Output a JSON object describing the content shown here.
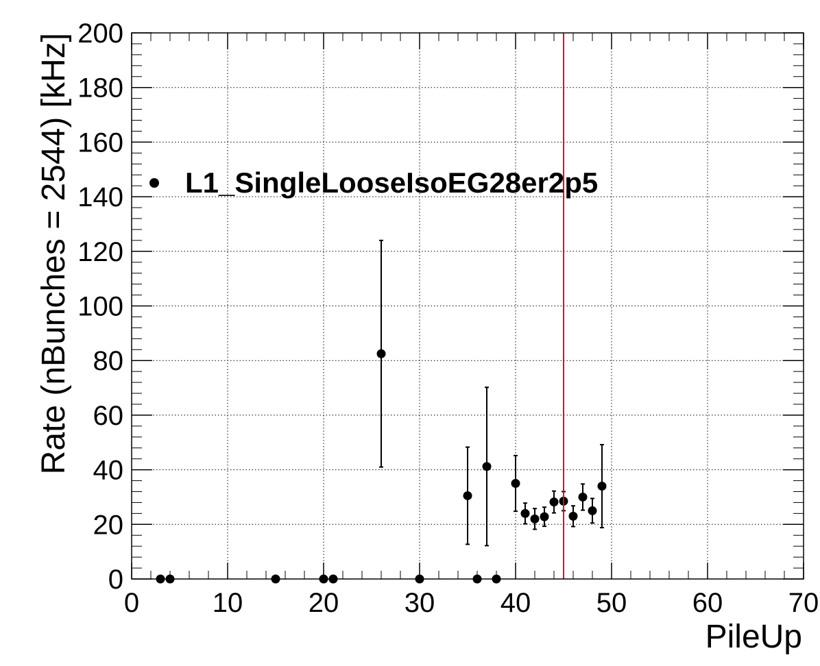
{
  "chart_data": {
    "type": "scatter",
    "title": "",
    "xlabel": "PileUp",
    "ylabel": "Rate (nBunches = 2544) [kHz]",
    "xlim": [
      0,
      70
    ],
    "ylim": [
      0,
      200
    ],
    "x_ticks": [
      0,
      10,
      20,
      30,
      40,
      50,
      60,
      70
    ],
    "y_ticks": [
      0,
      20,
      40,
      60,
      80,
      100,
      120,
      140,
      160,
      180,
      200
    ],
    "grid": true,
    "legend_position": "top-left",
    "series": [
      {
        "name": "L1_SingleLooseIsoEG28er2p5",
        "color": "#000000",
        "marker": "circle",
        "points": [
          {
            "x": 3,
            "y": 0
          },
          {
            "x": 4,
            "y": 0
          },
          {
            "x": 15,
            "y": 0
          },
          {
            "x": 20,
            "y": 0
          },
          {
            "x": 21,
            "y": 0
          },
          {
            "x": 26,
            "y": 82.5,
            "err": 41.5
          },
          {
            "x": 30,
            "y": 0
          },
          {
            "x": 35,
            "y": 30.5,
            "err": 17.8
          },
          {
            "x": 36,
            "y": 0
          },
          {
            "x": 37,
            "y": 41.2,
            "err": 29.0
          },
          {
            "x": 38,
            "y": 0
          },
          {
            "x": 40,
            "y": 35.0,
            "err": 10.2
          },
          {
            "x": 41,
            "y": 24.0,
            "err": 3.8
          },
          {
            "x": 42,
            "y": 22.0,
            "err": 3.8
          },
          {
            "x": 43,
            "y": 22.8,
            "err": 3.5
          },
          {
            "x": 44,
            "y": 28.2,
            "err": 4.0
          },
          {
            "x": 45,
            "y": 28.5,
            "err": 3.5
          },
          {
            "x": 46,
            "y": 23.0,
            "err": 3.8
          },
          {
            "x": 47,
            "y": 30.0,
            "err": 4.8
          },
          {
            "x": 48,
            "y": 25.0,
            "err": 4.5
          },
          {
            "x": 49,
            "y": 34.0,
            "err": 15.2
          }
        ]
      }
    ],
    "vertical_line": {
      "x": 45,
      "color": "#e8000b"
    }
  }
}
